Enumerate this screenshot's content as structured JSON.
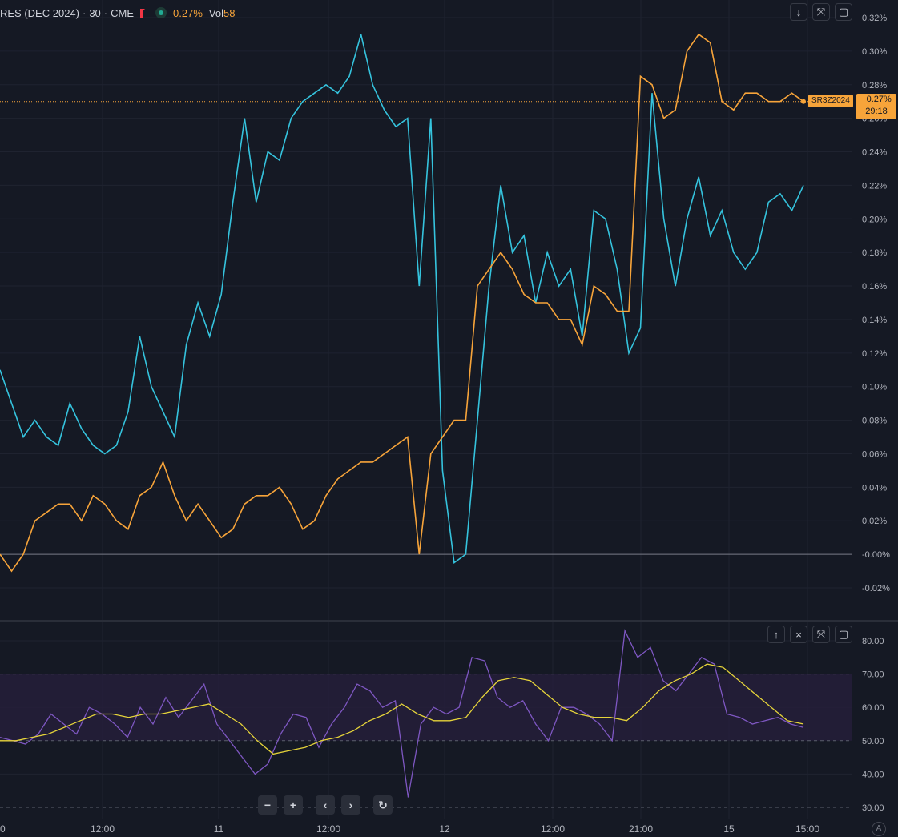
{
  "legend": {
    "symbol": "RES (DEC 2024)",
    "interval": "30",
    "exchange": "CME",
    "separator": "·",
    "change_pct": "0.27%",
    "vol_label": "Vol",
    "vol_value": "58"
  },
  "main_pane": {
    "y_tick_labels": [
      "0.32%",
      "0.30%",
      "0.28%",
      "0.26%",
      "0.24%",
      "0.22%",
      "0.20%",
      "0.18%",
      "0.16%",
      "0.14%",
      "0.12%",
      "0.10%",
      "0.08%",
      "0.06%",
      "0.04%",
      "0.02%",
      "-0.00%",
      "-0.02%"
    ],
    "symbol_label": "SR3Z2024",
    "price_tag_pct": "+0.27%",
    "price_tag_timer": "29:18",
    "buttons": [
      "↓",
      "⤧",
      "▢"
    ]
  },
  "rsi_pane": {
    "y_tick_labels": [
      "80.00",
      "70.00",
      "60.00",
      "50.00",
      "40.00",
      "30.00"
    ],
    "buttons": [
      "↑",
      "×",
      "⤧",
      "▢"
    ]
  },
  "x_axis": {
    "labels": [
      "0",
      "12:00",
      "11",
      "12:00",
      "12",
      "12:00",
      "21:00",
      "15",
      "15:00"
    ]
  },
  "bottom_nav": {
    "zoom_out": "−",
    "zoom_in": "+",
    "scroll_left": "‹",
    "scroll_right": "›",
    "reset": "↻"
  },
  "auto_scale": "A",
  "colors": {
    "background": "#151924",
    "orange_series": "#f7a43a",
    "cyan_series": "#35c3dd",
    "rsi_line": "#7e57c2",
    "rsi_ma": "#e6d43a",
    "rsi_band": "#271f3c"
  },
  "chart_data": [
    {
      "type": "line",
      "title": "",
      "y_unit": "%",
      "ylim": [
        -0.03,
        0.32
      ],
      "x_labels": [
        "12:00",
        "11",
        "12:00",
        "12",
        "12:00",
        "21:00",
        "15",
        "15:00"
      ],
      "series": [
        {
          "name": "SR3Z2024",
          "color": "#f7a43a",
          "values": [
            0.0,
            -0.01,
            0.0,
            0.02,
            0.025,
            0.03,
            0.03,
            0.02,
            0.035,
            0.03,
            0.02,
            0.015,
            0.035,
            0.04,
            0.055,
            0.035,
            0.02,
            0.03,
            0.02,
            0.01,
            0.015,
            0.03,
            0.035,
            0.035,
            0.04,
            0.03,
            0.015,
            0.02,
            0.035,
            0.045,
            0.05,
            0.055,
            0.055,
            0.06,
            0.065,
            0.07,
            0.0,
            0.06,
            0.07,
            0.08,
            0.08,
            0.16,
            0.17,
            0.18,
            0.17,
            0.155,
            0.15,
            0.15,
            0.14,
            0.14,
            0.125,
            0.16,
            0.155,
            0.145,
            0.145,
            0.285,
            0.28,
            0.26,
            0.265,
            0.3,
            0.31,
            0.305,
            0.27,
            0.265,
            0.275,
            0.275,
            0.27,
            0.27,
            0.275,
            0.27
          ]
        },
        {
          "name": "",
          "color": "#35c3dd",
          "values": [
            0.11,
            0.09,
            0.07,
            0.08,
            0.07,
            0.065,
            0.09,
            0.075,
            0.065,
            0.06,
            0.065,
            0.085,
            0.13,
            0.1,
            0.085,
            0.07,
            0.125,
            0.15,
            0.13,
            0.155,
            0.21,
            0.26,
            0.21,
            0.24,
            0.235,
            0.26,
            0.27,
            0.275,
            0.28,
            0.275,
            0.285,
            0.31,
            0.28,
            0.265,
            0.255,
            0.26,
            0.16,
            0.26,
            0.05,
            -0.005,
            0.0,
            0.08,
            0.16,
            0.22,
            0.18,
            0.19,
            0.15,
            0.18,
            0.16,
            0.17,
            0.13,
            0.205,
            0.2,
            0.17,
            0.12,
            0.135,
            0.275,
            0.2,
            0.16,
            0.2,
            0.225,
            0.19,
            0.205,
            0.18,
            0.17,
            0.18,
            0.21,
            0.215,
            0.205,
            0.22
          ]
        }
      ]
    },
    {
      "type": "line",
      "title": "",
      "ylim": [
        30,
        85
      ],
      "band": [
        50,
        70
      ],
      "series": [
        {
          "name": "",
          "color": "#7e57c2",
          "values": [
            51,
            50,
            49,
            52,
            58,
            55,
            52,
            60,
            58,
            55,
            51,
            60,
            55,
            63,
            57,
            62,
            67,
            55,
            50,
            45,
            40,
            43,
            52,
            58,
            57,
            48,
            55,
            60,
            67,
            65,
            60,
            62,
            33,
            55,
            60,
            58,
            60,
            75,
            74,
            63,
            60,
            62,
            55,
            50,
            60,
            60,
            58,
            55,
            50,
            83,
            75,
            78,
            68,
            65,
            70,
            75,
            73,
            58,
            57,
            55,
            56,
            57,
            55,
            54
          ]
        },
        {
          "name": "",
          "color": "#e6d43a",
          "values": [
            50,
            50,
            51,
            52,
            54,
            56,
            58,
            58,
            57,
            58,
            58,
            59,
            60,
            61,
            58,
            55,
            50,
            46,
            47,
            48,
            50,
            51,
            53,
            56,
            58,
            61,
            58,
            56,
            56,
            57,
            63,
            68,
            69,
            68,
            64,
            60,
            58,
            57,
            57,
            56,
            60,
            65,
            68,
            70,
            73,
            72,
            68,
            64,
            60,
            56,
            55
          ]
        }
      ]
    }
  ]
}
